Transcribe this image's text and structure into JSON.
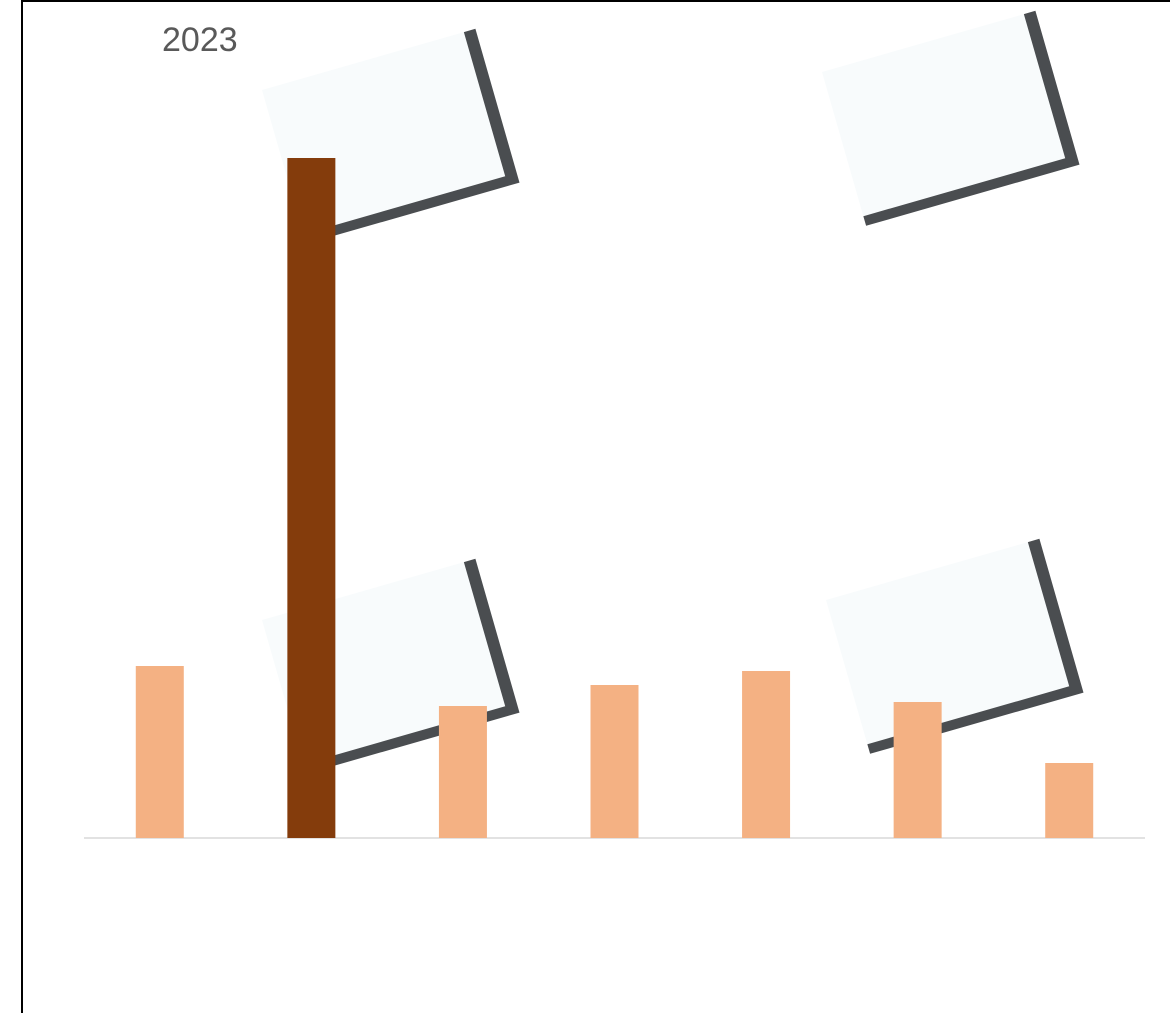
{
  "chart_data": {
    "type": "bar",
    "title": "2023",
    "categories": [
      null,
      null,
      null,
      null,
      null,
      null,
      null
    ],
    "values": [
      172,
      680,
      132,
      153,
      167,
      136,
      75
    ],
    "colors": [
      "#f4b183",
      "#843c0c",
      "#f4b183",
      "#f4b183",
      "#f4b183",
      "#f4b183",
      "#f4b183"
    ],
    "ylim": [
      0,
      680
    ]
  }
}
